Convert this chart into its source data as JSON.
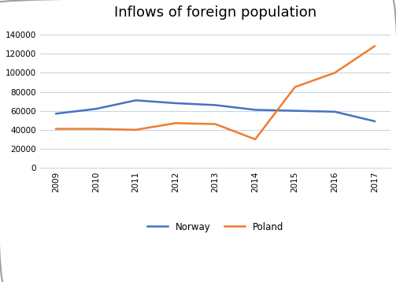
{
  "title": "Inflows of foreign population",
  "years": [
    2009,
    2010,
    2011,
    2012,
    2013,
    2014,
    2015,
    2016,
    2017
  ],
  "norway": [
    57000,
    62000,
    71000,
    68000,
    66000,
    61000,
    60000,
    59000,
    49000
  ],
  "poland": [
    41000,
    41000,
    40000,
    47000,
    46000,
    30000,
    85000,
    100000,
    128000
  ],
  "norway_color": "#4472c4",
  "poland_color": "#ed7d31",
  "ylim": [
    0,
    150000
  ],
  "yticks": [
    0,
    20000,
    40000,
    60000,
    80000,
    100000,
    120000,
    140000
  ],
  "background_color": "#ffffff",
  "grid_color": "#c5d5e8",
  "title_fontsize": 13,
  "legend_labels": [
    "Norway",
    "Poland"
  ],
  "border_color": "#a0a0a0",
  "tick_fontsize": 7.5
}
